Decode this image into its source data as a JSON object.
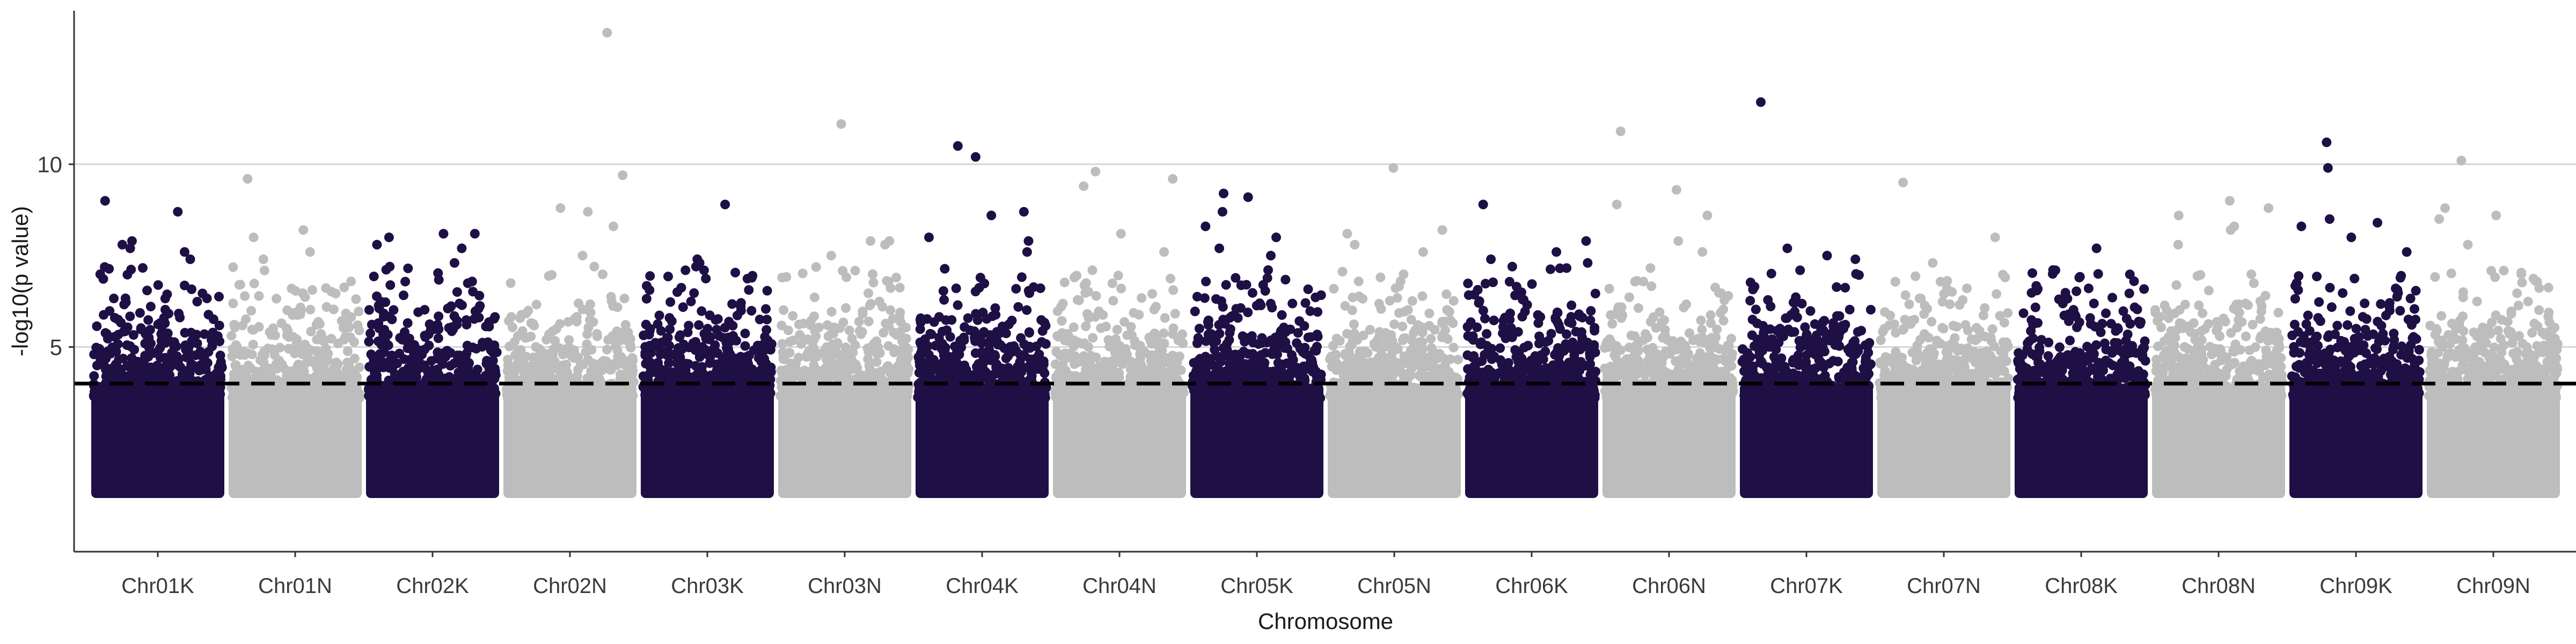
{
  "chart_data": {
    "type": "scatter",
    "subtype": "manhattan",
    "title": "",
    "xlabel": "Chromosome",
    "ylabel": "-log10(p value)",
    "ylim": [
      -0.6,
      14.2
    ],
    "yticks": [
      5,
      10
    ],
    "y_grid_lines": [
      5,
      10
    ],
    "threshold": 4,
    "colors": {
      "dark": "#1e0f45",
      "light": "#bdbdbd",
      "threshold": "#000000",
      "grid": "#d4d4d4",
      "axis": "#333333"
    },
    "categories": [
      "Chr01K",
      "Chr01N",
      "Chr02K",
      "Chr02N",
      "Chr03K",
      "Chr03N",
      "Chr04K",
      "Chr04N",
      "Chr05K",
      "Chr05N",
      "Chr06K",
      "Chr06N",
      "Chr07K",
      "Chr07N",
      "Chr08K",
      "Chr08N",
      "Chr09K",
      "Chr09N"
    ],
    "chromosomes": [
      {
        "name": "Chr01K",
        "max_log10p": 9.0,
        "top_points": [
          9.0,
          8.7,
          7.9,
          7.8,
          7.7,
          7.6,
          7.4
        ]
      },
      {
        "name": "Chr01N",
        "max_log10p": 9.6,
        "top_points": [
          9.6,
          8.2,
          8.0,
          7.6,
          7.4
        ]
      },
      {
        "name": "Chr02K",
        "max_log10p": 8.1,
        "top_points": [
          8.1,
          8.1,
          8.0,
          7.8,
          7.7,
          7.3,
          7.2
        ]
      },
      {
        "name": "Chr02N",
        "max_log10p": 13.6,
        "top_points": [
          13.6,
          9.7,
          8.8,
          8.7,
          8.3,
          7.5,
          7.2
        ]
      },
      {
        "name": "Chr03K",
        "max_log10p": 8.9,
        "top_points": [
          8.9,
          7.4,
          7.3,
          7.2,
          7.1,
          7.1
        ]
      },
      {
        "name": "Chr03N",
        "max_log10p": 11.1,
        "top_points": [
          11.1,
          7.9,
          7.9,
          7.8,
          7.5
        ]
      },
      {
        "name": "Chr04K",
        "max_log10p": 10.5,
        "top_points": [
          10.5,
          10.2,
          8.7,
          8.6,
          8.0,
          7.9,
          7.6
        ]
      },
      {
        "name": "Chr04N",
        "max_log10p": 9.8,
        "top_points": [
          9.8,
          9.6,
          9.4,
          8.1,
          7.6
        ]
      },
      {
        "name": "Chr05K",
        "max_log10p": 9.2,
        "top_points": [
          9.2,
          9.1,
          8.7,
          8.3,
          8.0,
          7.7,
          7.5
        ]
      },
      {
        "name": "Chr05N",
        "max_log10p": 9.9,
        "top_points": [
          9.9,
          8.2,
          8.1,
          7.8,
          7.6
        ]
      },
      {
        "name": "Chr06K",
        "max_log10p": 8.9,
        "top_points": [
          8.9,
          7.9,
          7.6,
          7.4,
          7.3,
          7.2
        ]
      },
      {
        "name": "Chr06N",
        "max_log10p": 10.9,
        "top_points": [
          10.9,
          9.3,
          8.9,
          8.6,
          7.9,
          7.6
        ]
      },
      {
        "name": "Chr07K",
        "max_log10p": 11.7,
        "top_points": [
          11.7,
          7.7,
          7.5,
          7.4,
          7.1,
          7.0
        ]
      },
      {
        "name": "Chr07N",
        "max_log10p": 9.5,
        "top_points": [
          9.5,
          8.0,
          7.3,
          6.6
        ]
      },
      {
        "name": "Chr08K",
        "max_log10p": 7.7,
        "top_points": [
          7.7,
          7.1,
          7.0,
          6.9,
          6.8
        ]
      },
      {
        "name": "Chr08N",
        "max_log10p": 9.0,
        "top_points": [
          9.0,
          8.8,
          8.6,
          8.3,
          8.2,
          7.8
        ]
      },
      {
        "name": "Chr09K",
        "max_log10p": 10.6,
        "top_points": [
          10.6,
          9.9,
          8.5,
          8.4,
          8.3,
          8.0,
          7.6
        ]
      },
      {
        "name": "Chr09N",
        "max_log10p": 10.1,
        "top_points": [
          10.1,
          8.8,
          8.6,
          8.5,
          7.8
        ]
      }
    ]
  }
}
